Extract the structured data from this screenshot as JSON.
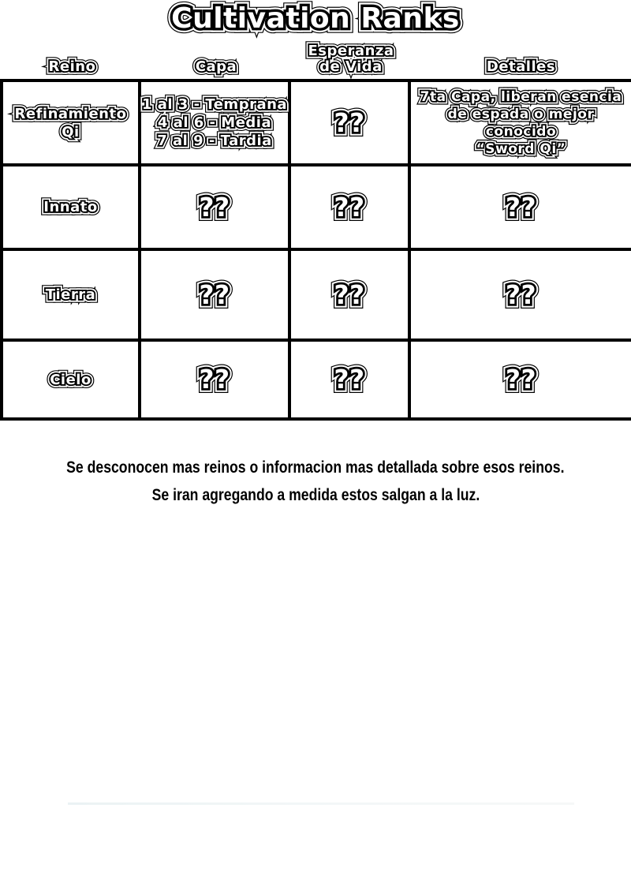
{
  "title": "Cultivation Ranks",
  "table": {
    "columns": [
      {
        "label": "Reino"
      },
      {
        "label": "Capa"
      },
      {
        "label": "Esperanza\nde Vida"
      },
      {
        "label": "Detalles"
      }
    ],
    "rows": [
      {
        "reino": "Refinamiento Qi",
        "capa": "1 al 3 - Temprana\n4 al 6 - Media\n7 al 9 - Tardia",
        "esperanza": "??",
        "detalles": "7ta Capa, liberan esencia\nde espada o mejor conocido\n“Sword Qi”"
      },
      {
        "reino": "Innato",
        "capa": "??",
        "esperanza": "??",
        "detalles": "??"
      },
      {
        "reino": "Tierra",
        "capa": "??",
        "esperanza": "??",
        "detalles": "??"
      },
      {
        "reino": "Cielo",
        "capa": "??",
        "esperanza": "??",
        "detalles": "??"
      }
    ]
  },
  "footer": {
    "line1": "Se desconocen mas reinos o informacion mas detallada sobre esos reinos.",
    "line2": "Se iran agregando a medida estos salgan a la luz."
  },
  "colors": {
    "ink": "#000000",
    "paper": "#ffffff",
    "faint_artifact_line": "#eef3f4"
  }
}
